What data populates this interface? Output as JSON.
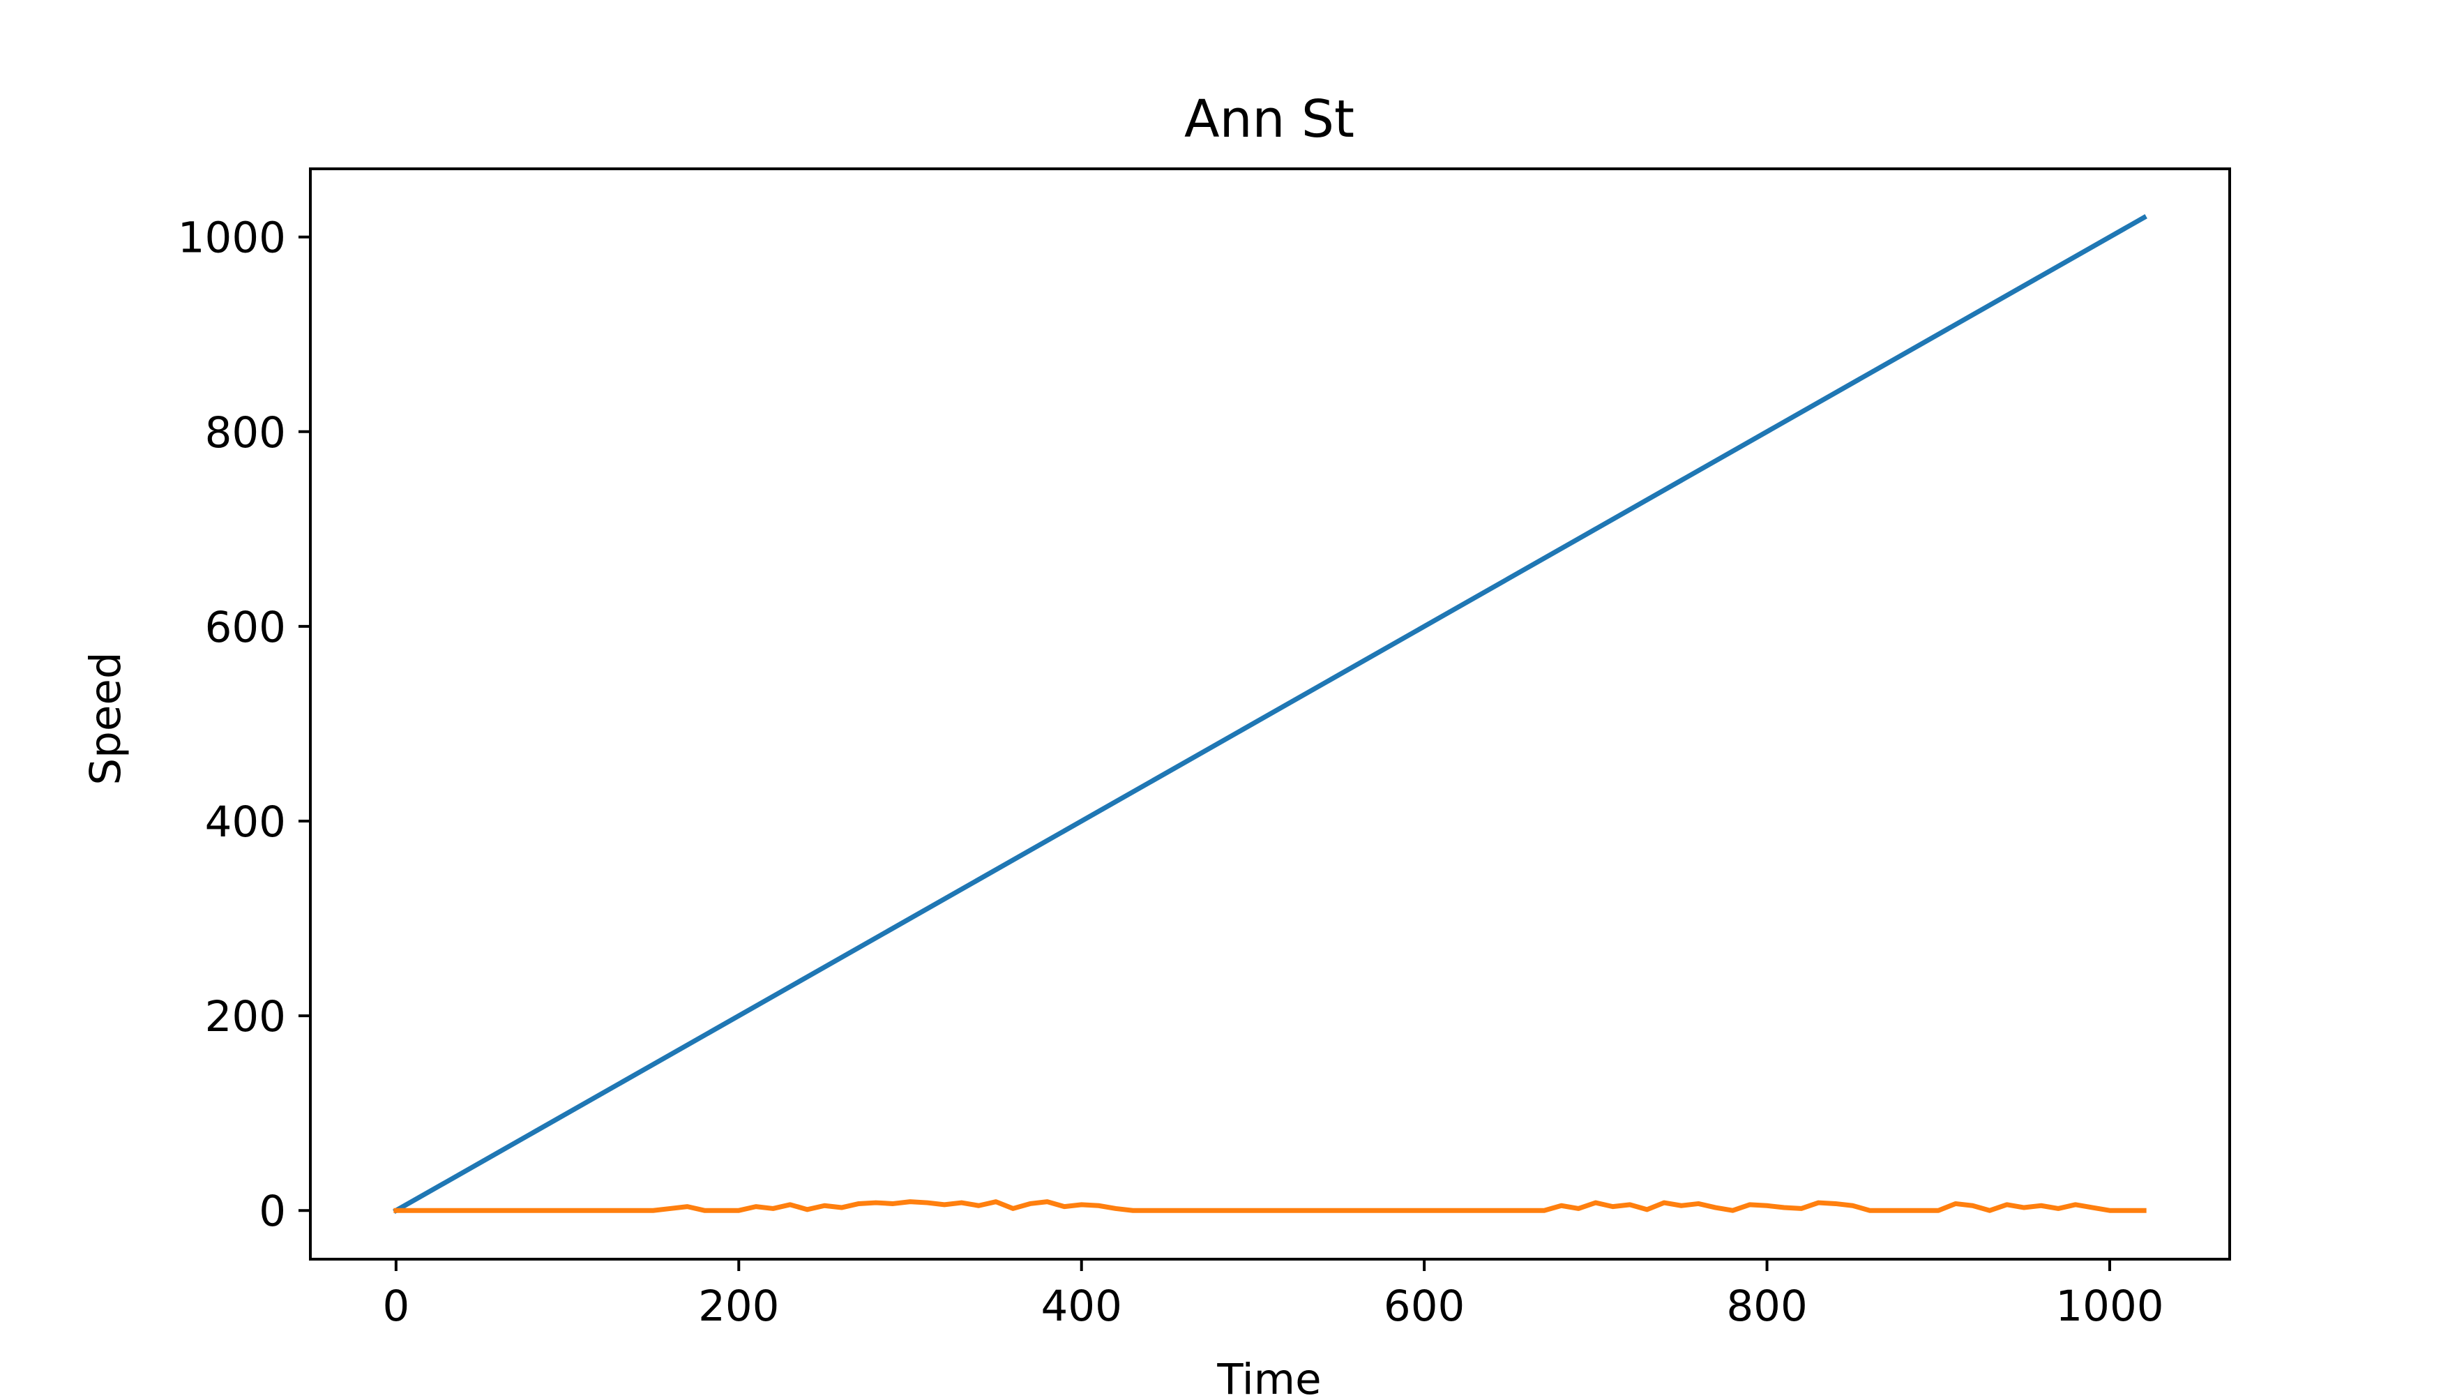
{
  "chart_data": {
    "type": "line",
    "title": "Ann St",
    "xlabel": "Time",
    "ylabel": "Speed",
    "xlim": [
      -50,
      1070
    ],
    "ylim": [
      -50,
      1070
    ],
    "x_ticks": [
      0,
      200,
      400,
      600,
      800,
      1000
    ],
    "y_ticks": [
      0,
      200,
      400,
      600,
      800,
      1000
    ],
    "grid": false,
    "series": [
      {
        "color": "#1f77b4",
        "x": [
          0,
          1020
        ],
        "y": [
          0,
          1020
        ]
      },
      {
        "color": "#ff7f0e",
        "x": [
          0,
          100,
          150,
          160,
          170,
          180,
          200,
          210,
          220,
          230,
          240,
          250,
          260,
          270,
          280,
          290,
          300,
          310,
          320,
          330,
          340,
          350,
          360,
          370,
          380,
          390,
          400,
          410,
          420,
          430,
          440,
          500,
          600,
          670,
          680,
          690,
          700,
          710,
          720,
          730,
          740,
          750,
          760,
          770,
          780,
          790,
          800,
          810,
          820,
          830,
          840,
          850,
          860,
          900,
          910,
          920,
          930,
          940,
          950,
          960,
          970,
          980,
          990,
          1000,
          1020
        ],
        "y": [
          0,
          0,
          0,
          2,
          4,
          0,
          0,
          4,
          2,
          6,
          1,
          5,
          3,
          7,
          8,
          7,
          9,
          8,
          6,
          8,
          5,
          9,
          2,
          7,
          9,
          4,
          6,
          5,
          2,
          0,
          0,
          0,
          0,
          0,
          5,
          2,
          8,
          4,
          6,
          1,
          8,
          5,
          7,
          3,
          0,
          6,
          5,
          3,
          2,
          8,
          7,
          5,
          0,
          0,
          7,
          5,
          0,
          6,
          3,
          5,
          2,
          6,
          3,
          0,
          0
        ]
      }
    ]
  }
}
